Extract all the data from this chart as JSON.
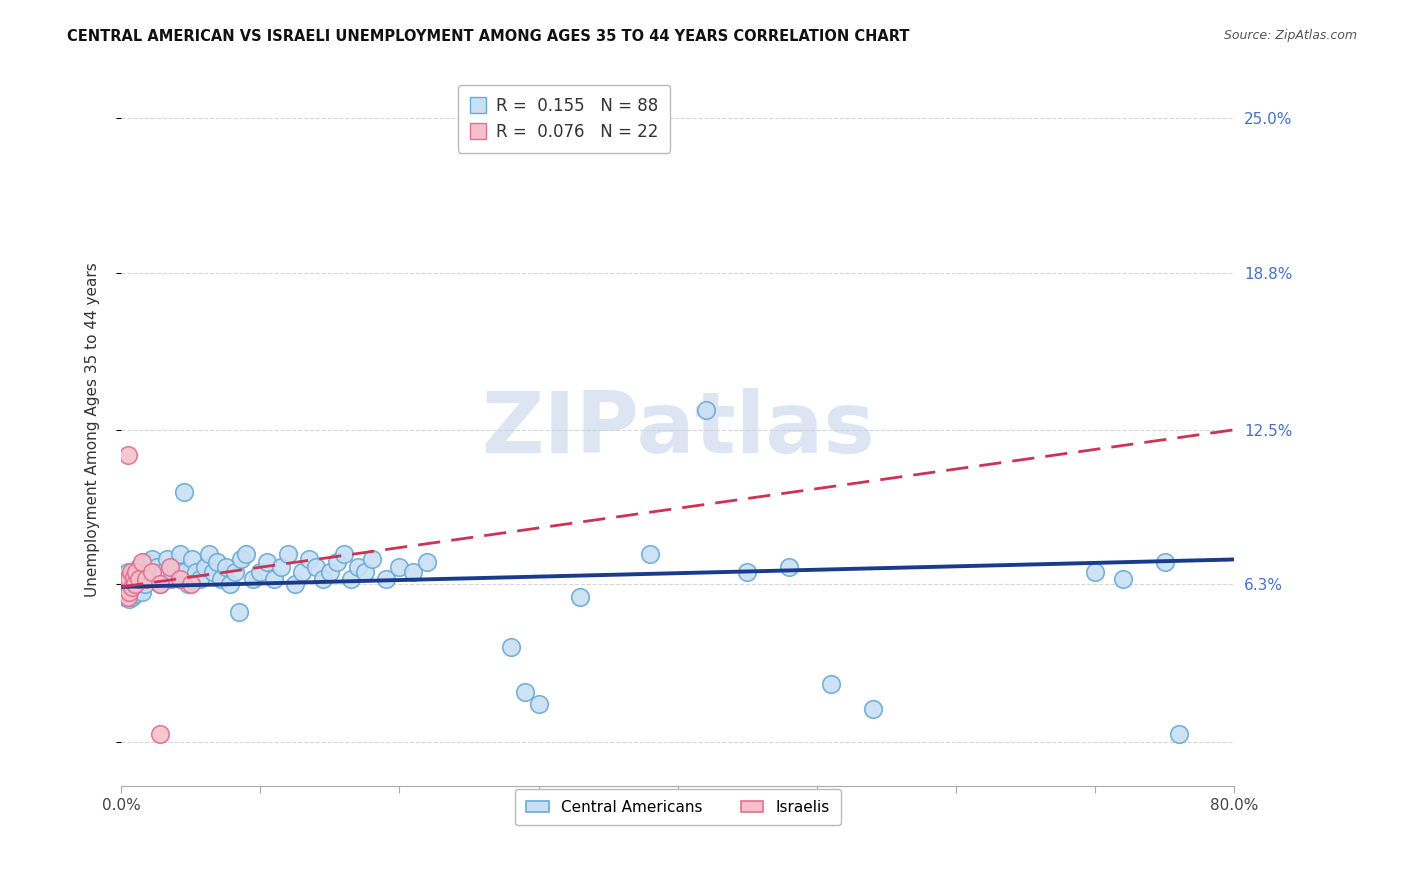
{
  "title": "CENTRAL AMERICAN VS ISRAELI UNEMPLOYMENT AMONG AGES 35 TO 44 YEARS CORRELATION CHART",
  "source": "Source: ZipAtlas.com",
  "ylabel": "Unemployment Among Ages 35 to 44 years",
  "xlim": [
    0.0,
    0.8
  ],
  "ylim": [
    -0.018,
    0.268
  ],
  "ytick_positions": [
    0.0,
    0.063,
    0.125,
    0.188,
    0.25
  ],
  "ytick_labels": [
    "",
    "6.3%",
    "12.5%",
    "18.8%",
    "25.0%"
  ],
  "legend_r1": "R =  0.155",
  "legend_n1": "N = 88",
  "legend_r2": "R =  0.076",
  "legend_n2": "N = 22",
  "watermark": "ZIPatlas",
  "blue_fill": "#c8dff4",
  "blue_edge": "#6aaad4",
  "pink_fill": "#f5c0cc",
  "pink_edge": "#e07090",
  "blue_line_color": "#1a3a8c",
  "pink_line_color": "#cc3355",
  "background_color": "#ffffff",
  "grid_color": "#cccccc",
  "ca_x": [
    0.002,
    0.003,
    0.003,
    0.004,
    0.004,
    0.005,
    0.005,
    0.006,
    0.006,
    0.007,
    0.007,
    0.008,
    0.008,
    0.009,
    0.009,
    0.01,
    0.01,
    0.011,
    0.012,
    0.013,
    0.014,
    0.015,
    0.016,
    0.017,
    0.018,
    0.02,
    0.022,
    0.024,
    0.026,
    0.028,
    0.03,
    0.033,
    0.036,
    0.039,
    0.042,
    0.045,
    0.048,
    0.051,
    0.054,
    0.057,
    0.06,
    0.063,
    0.066,
    0.069,
    0.072,
    0.075,
    0.078,
    0.082,
    0.086,
    0.09,
    0.095,
    0.1,
    0.105,
    0.11,
    0.115,
    0.12,
    0.125,
    0.13,
    0.135,
    0.14,
    0.145,
    0.15,
    0.155,
    0.16,
    0.165,
    0.17,
    0.175,
    0.18,
    0.19,
    0.2,
    0.21,
    0.22,
    0.28,
    0.29,
    0.3,
    0.33,
    0.38,
    0.42,
    0.45,
    0.48,
    0.51,
    0.54,
    0.7,
    0.72,
    0.75,
    0.76,
    0.045,
    0.085
  ],
  "ca_y": [
    0.063,
    0.058,
    0.067,
    0.06,
    0.065,
    0.062,
    0.068,
    0.063,
    0.057,
    0.066,
    0.06,
    0.064,
    0.058,
    0.067,
    0.062,
    0.065,
    0.059,
    0.068,
    0.063,
    0.07,
    0.065,
    0.06,
    0.068,
    0.063,
    0.072,
    0.067,
    0.073,
    0.065,
    0.07,
    0.063,
    0.068,
    0.073,
    0.065,
    0.07,
    0.075,
    0.068,
    0.063,
    0.073,
    0.068,
    0.065,
    0.07,
    0.075,
    0.068,
    0.072,
    0.065,
    0.07,
    0.063,
    0.068,
    0.073,
    0.075,
    0.065,
    0.068,
    0.072,
    0.065,
    0.07,
    0.075,
    0.063,
    0.068,
    0.073,
    0.07,
    0.065,
    0.068,
    0.072,
    0.075,
    0.065,
    0.07,
    0.068,
    0.073,
    0.065,
    0.07,
    0.068,
    0.072,
    0.038,
    0.02,
    0.015,
    0.058,
    0.075,
    0.133,
    0.068,
    0.07,
    0.023,
    0.013,
    0.068,
    0.065,
    0.072,
    0.003,
    0.1,
    0.052
  ],
  "is_x": [
    0.002,
    0.003,
    0.004,
    0.005,
    0.005,
    0.006,
    0.006,
    0.007,
    0.008,
    0.009,
    0.01,
    0.011,
    0.013,
    0.015,
    0.018,
    0.022,
    0.028,
    0.035,
    0.042,
    0.05,
    0.005,
    0.028
  ],
  "is_y": [
    0.063,
    0.06,
    0.065,
    0.058,
    0.063,
    0.06,
    0.065,
    0.068,
    0.062,
    0.066,
    0.063,
    0.068,
    0.065,
    0.072,
    0.065,
    0.068,
    0.063,
    0.07,
    0.065,
    0.063,
    0.115,
    0.003
  ]
}
